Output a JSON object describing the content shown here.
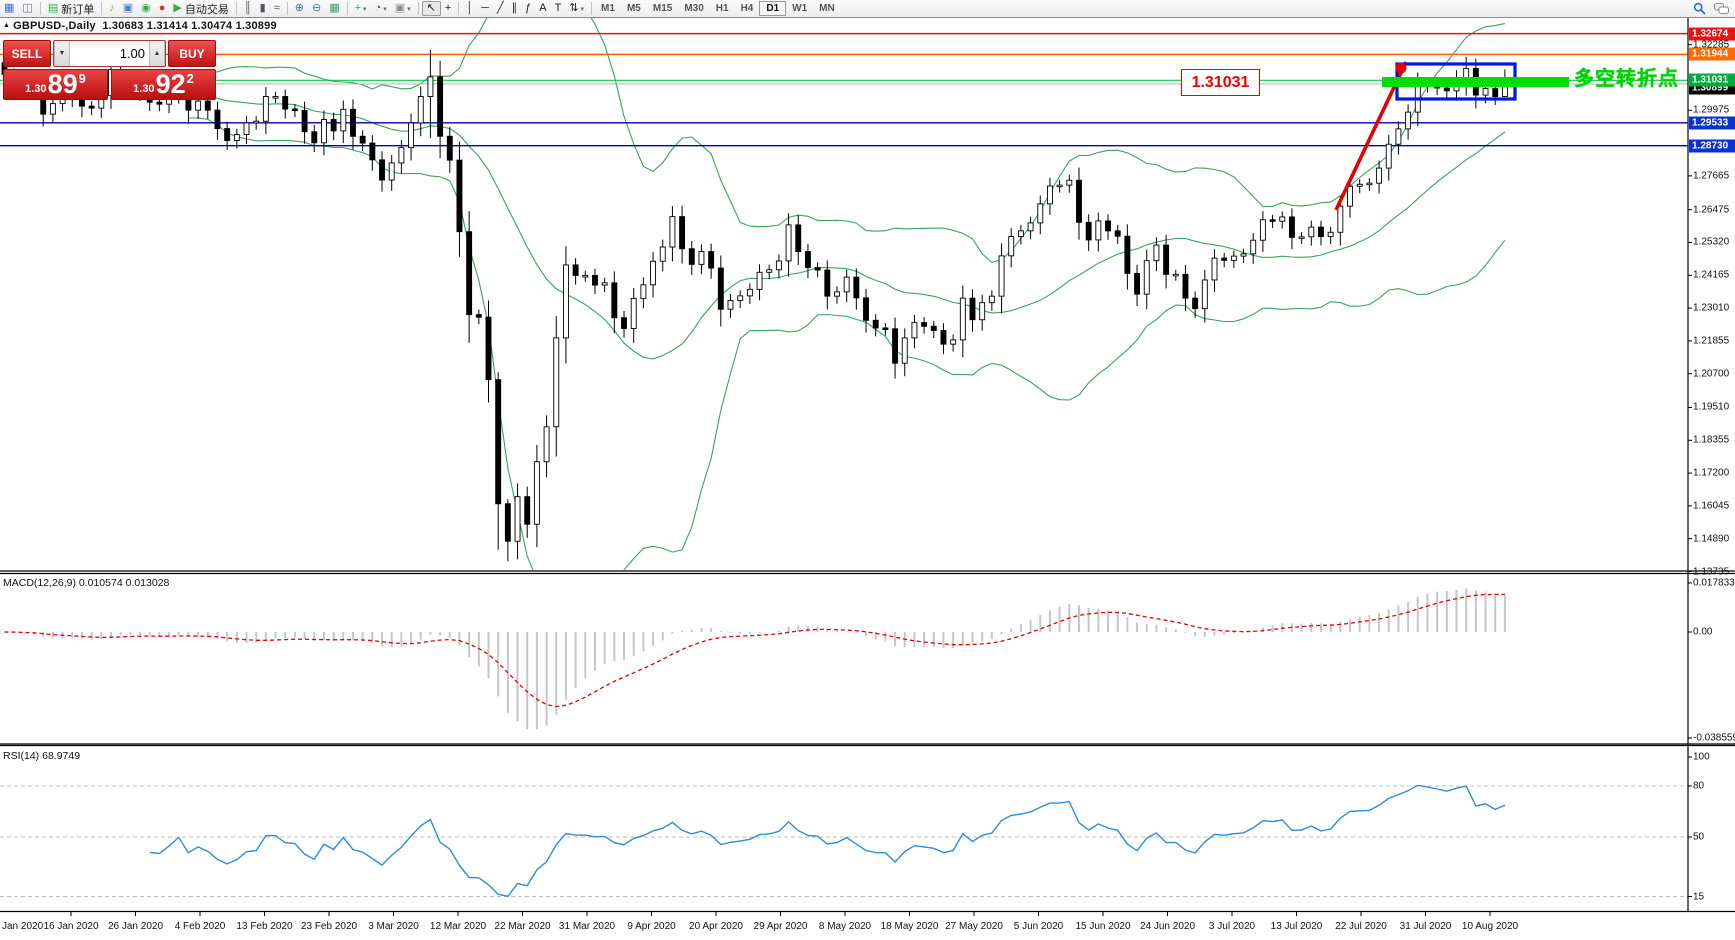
{
  "toolbar": {
    "items": [
      {
        "k": "icon",
        "n": "chart-window-icon",
        "g": "▦",
        "c": "#3b72c4"
      },
      {
        "k": "icon",
        "n": "data-window-icon",
        "g": "◫",
        "c": "#6b7b8d"
      },
      {
        "k": "sep"
      },
      {
        "k": "btn",
        "n": "new-order-button",
        "g": "▤",
        "gc": "#2fae4a",
        "label": "新订单"
      },
      {
        "k": "sep"
      },
      {
        "k": "icon",
        "n": "sound-icon",
        "g": "♪",
        "c": "#c79a2a"
      },
      {
        "k": "icon",
        "n": "terminal-icon",
        "g": "▣",
        "c": "#4a7fd4"
      },
      {
        "k": "icon",
        "n": "signals-icon",
        "g": "◉",
        "c": "#2fae4a"
      },
      {
        "k": "icon",
        "n": "market-icon",
        "g": "●",
        "c": "#c43a2f"
      },
      {
        "k": "btn",
        "n": "autotrading-button",
        "g": "▶",
        "gc": "#2fae4a",
        "label": "自动交易"
      },
      {
        "k": "sep"
      },
      {
        "k": "icon",
        "n": "bar-chart-icon",
        "g": "║",
        "c": "#555566"
      },
      {
        "k": "icon",
        "n": "candlestick-icon",
        "g": "▮",
        "c": "#555566"
      },
      {
        "k": "icon",
        "n": "line-chart-icon",
        "g": "≈",
        "c": "#555566"
      },
      {
        "k": "sep"
      },
      {
        "k": "icon",
        "n": "zoom-in-icon",
        "g": "⊕",
        "c": "#3b72c4"
      },
      {
        "k": "icon",
        "n": "zoom-out-icon",
        "g": "⊖",
        "c": "#3b72c4"
      },
      {
        "k": "icon",
        "n": "tile-windows-icon",
        "g": "▦",
        "c": "#35a06a"
      },
      {
        "k": "sep"
      },
      {
        "k": "icon",
        "n": "indicators-icon",
        "g": "+",
        "c": "#2fae4a",
        "dd": true
      },
      {
        "k": "icon",
        "n": "periods-icon",
        "g": "◔",
        "c": "#555566",
        "dd": true
      },
      {
        "k": "icon",
        "n": "templates-icon",
        "g": "▣",
        "c": "#8a8a93",
        "dd": true
      },
      {
        "k": "sep"
      },
      {
        "k": "icon",
        "n": "cursor-icon",
        "g": "↖",
        "c": "#222222",
        "active": true
      },
      {
        "k": "icon",
        "n": "crosshair-icon",
        "g": "+",
        "c": "#222222"
      },
      {
        "k": "sep"
      },
      {
        "k": "icon",
        "n": "vertical-line-icon",
        "g": "│",
        "c": "#222222"
      },
      {
        "k": "icon",
        "n": "horizontal-line-icon",
        "g": "─",
        "c": "#222222"
      },
      {
        "k": "icon",
        "n": "trendline-icon",
        "g": "╱",
        "c": "#222222"
      },
      {
        "k": "icon",
        "n": "channel-icon",
        "g": "∥",
        "c": "#222222"
      },
      {
        "k": "icon",
        "n": "fibonacci-icon",
        "g": "ƒ",
        "c": "#222222"
      },
      {
        "k": "icon",
        "n": "text-icon",
        "g": "A",
        "c": "#222222"
      },
      {
        "k": "icon",
        "n": "label-icon",
        "g": "T",
        "c": "#222222"
      },
      {
        "k": "icon",
        "n": "arrows-icon",
        "g": "⇅",
        "c": "#222222",
        "dd": true
      },
      {
        "k": "sep"
      }
    ],
    "timeframes": [
      "M1",
      "M5",
      "M15",
      "M30",
      "H1",
      "H4",
      "D1",
      "W1",
      "MN"
    ],
    "active_timeframe": "D1"
  },
  "chart": {
    "title_mark": "▲",
    "symbol_period": "GBPUSD-,Daily",
    "ohlc": "1.30683 1.31414 1.30474 1.30899",
    "price_label": "1.31031",
    "annotation": "多空转折点",
    "current_price": {
      "text": "1.30899",
      "value": 1.30899,
      "line_color": "#b4b4b4",
      "bg": "#000000"
    },
    "levels": [
      {
        "text": "1.32674",
        "value": 1.32674,
        "line": "#ee1111",
        "bg": "#ee1111"
      },
      {
        "text": "1.31944",
        "value": 1.31944,
        "line": "#ff5f00",
        "bg": "#ff6a00"
      },
      {
        "text": "1.31031",
        "value": 1.31031,
        "line": "#00cc44",
        "bg": "#00ad3c"
      },
      {
        "text": "1.29533",
        "value": 1.29533,
        "line": "#0000b4",
        "bg": "#0a32d0"
      },
      {
        "text": "1.28730",
        "value": 1.2873,
        "line": "#0000b4",
        "bg": "#0a32d0"
      }
    ],
    "axis_ticks": [
      "1.32285",
      "1.29975",
      "1.27665",
      "1.26475",
      "1.25320",
      "1.24165",
      "1.23010",
      "1.21855",
      "1.20700",
      "1.19510",
      "1.18355",
      "1.17200",
      "1.16045",
      "1.14890",
      "1.13735"
    ],
    "colors": {
      "bollinger": "#3aa45e",
      "bull": "#ffffff",
      "bear": "#000000",
      "wick": "#000000",
      "trend_annotation": "#e60000",
      "box_annotation": "#0018e0",
      "band_annotation": "#00dd00"
    }
  },
  "trade": {
    "sell_label": "SELL",
    "buy_label": "BUY",
    "volume": "1.00",
    "sell_price": {
      "small": "1.30",
      "big": "89",
      "sup": "9"
    },
    "buy_price": {
      "small": "1.30",
      "big": "92",
      "sup": "2"
    },
    "spin_up": "▲",
    "spin_down": "▼"
  },
  "macd": {
    "label": "MACD(12,26,9)",
    "values": "0.010574 0.013028",
    "axis": [
      "0.017833",
      "0.00",
      "-0.038559"
    ],
    "histogram_color": "#c6c6c6",
    "signal_color": "#e60000"
  },
  "rsi": {
    "label": "RSI(14)",
    "value": "68.9749",
    "axis": [
      "100",
      "80",
      "50",
      "15"
    ],
    "line_color": "#2a8de0",
    "level_values": [
      80,
      50,
      15
    ]
  },
  "dates": [
    "Jan 2020",
    "16 Jan 2020",
    "26 Jan 2020",
    "4 Feb 2020",
    "13 Feb 2020",
    "23 Feb 2020",
    "3 Mar 2020",
    "12 Mar 2020",
    "22 Mar 2020",
    "31 Mar 2020",
    "9 Apr 2020",
    "20 Apr 2020",
    "29 Apr 2020",
    "8 May 2020",
    "18 May 2020",
    "27 May 2020",
    "5 Jun 2020",
    "15 Jun 2020",
    "24 Jun 2020",
    "3 Jul 2020",
    "13 Jul 2020",
    "22 Jul 2020",
    "31 Jul 2020",
    "10 Aug 2020"
  ],
  "chart_data": {
    "type": "candlestick",
    "symbol": "GBPUSD",
    "period": "Daily",
    "open_first": 1.3165,
    "closes": [
      1.3124,
      1.3103,
      1.3067,
      1.3062,
      1.2984,
      1.3021,
      1.304,
      1.3074,
      1.3012,
      1.3005,
      1.3049,
      1.3141,
      1.3114,
      1.3073,
      1.3057,
      1.3026,
      1.3019,
      1.3055,
      1.31,
      1.2998,
      1.303,
      1.2998,
      1.2933,
      1.2891,
      1.2912,
      1.2953,
      1.2959,
      1.3046,
      1.3046,
      1.3002,
      1.2997,
      1.2922,
      1.2883,
      1.2965,
      1.2925,
      1.3001,
      1.2906,
      1.2882,
      1.2823,
      1.2752,
      1.2812,
      1.2866,
      1.2953,
      1.3046,
      1.3115,
      1.2906,
      1.2822,
      1.257,
      1.2278,
      1.2269,
      1.2049,
      1.1612,
      1.148,
      1.1637,
      1.154,
      1.176,
      1.1883,
      1.2196,
      1.2453,
      1.2416,
      1.2416,
      1.2382,
      1.239,
      1.2267,
      1.2229,
      1.2335,
      1.2383,
      1.2466,
      1.2516,
      1.2623,
      1.251,
      1.2455,
      1.25,
      1.2442,
      1.2297,
      1.2328,
      1.2344,
      1.2367,
      1.2427,
      1.2436,
      1.2467,
      1.2594,
      1.25,
      1.2444,
      1.2435,
      1.2343,
      1.2358,
      1.241,
      1.2337,
      1.2258,
      1.2231,
      1.2228,
      1.2107,
      1.2196,
      1.225,
      1.2237,
      1.2222,
      1.2174,
      1.2189,
      1.2336,
      1.226,
      1.232,
      1.2343,
      1.2485,
      1.2553,
      1.2573,
      1.2601,
      1.2668,
      1.2731,
      1.2734,
      1.2751,
      1.2603,
      1.2541,
      1.2608,
      1.2573,
      1.2554,
      1.2423,
      1.235,
      1.2468,
      1.2523,
      1.242,
      1.242,
      1.2336,
      1.2299,
      1.24,
      1.2477,
      1.2469,
      1.2484,
      1.2492,
      1.254,
      1.2612,
      1.2607,
      1.2622,
      1.255,
      1.2552,
      1.2586,
      1.2553,
      1.2568,
      1.266,
      1.273,
      1.2737,
      1.2741,
      1.2794,
      1.2878,
      1.2932,
      1.2991,
      1.3094,
      1.3085,
      1.3076,
      1.3066,
      1.3113,
      1.3145,
      1.3051,
      1.3074,
      1.3046,
      1.30899
    ],
    "wick_overrides": {
      "44": [
        1.321,
        1.29
      ],
      "51": [
        1.2075,
        1.145
      ],
      "52": [
        1.1628,
        1.1409
      ],
      "151": [
        1.3186,
        1.3049
      ],
      "155": [
        1.31414,
        1.30474
      ]
    },
    "indicators": {
      "bollinger": {
        "period": 20,
        "deviation": 2
      },
      "macd": [
        12,
        26,
        9
      ],
      "rsi": 14
    },
    "y_axis_range": [
      1.13735,
      1.333
    ],
    "macd_axis_range": [
      -0.038559,
      0.017833
    ],
    "rsi_axis_range": [
      0,
      100
    ]
  }
}
